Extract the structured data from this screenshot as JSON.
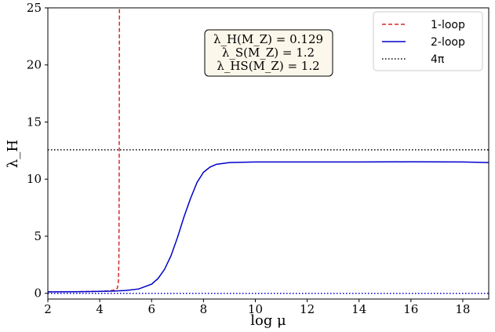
{
  "chart_data": {
    "type": "line",
    "title": "",
    "xlabel": "log μ",
    "ylabel": "λ_H",
    "xlim": [
      2,
      19
    ],
    "ylim": [
      -0.5,
      25
    ],
    "xticks": [
      2,
      4,
      6,
      8,
      10,
      12,
      14,
      16,
      18
    ],
    "yticks": [
      0,
      5,
      10,
      15,
      20,
      25
    ],
    "grid": false,
    "legend_position": "top-right",
    "series": [
      {
        "name": "1-loop",
        "style": "dashed",
        "color": "#d62728",
        "x": [
          2,
          3,
          4,
          4.4,
          4.6,
          4.68,
          4.72,
          4.74,
          4.75,
          4.76
        ],
        "y": [
          0.13,
          0.14,
          0.17,
          0.22,
          0.3,
          0.45,
          1.0,
          3.0,
          10.0,
          25.0
        ]
      },
      {
        "name": "2-loop",
        "style": "solid",
        "color": "#0000cc",
        "x": [
          2,
          3,
          4,
          4.5,
          5,
          5.5,
          6,
          6.25,
          6.5,
          6.75,
          7,
          7.25,
          7.5,
          7.75,
          8,
          8.25,
          8.5,
          9,
          10,
          12,
          14,
          16,
          18,
          19
        ],
        "y": [
          0.13,
          0.14,
          0.17,
          0.2,
          0.25,
          0.38,
          0.8,
          1.3,
          2.1,
          3.3,
          4.9,
          6.7,
          8.3,
          9.7,
          10.6,
          11.05,
          11.3,
          11.45,
          11.5,
          11.5,
          11.5,
          11.52,
          11.5,
          11.45
        ]
      },
      {
        "name": "4π",
        "style": "dotted",
        "color": "#000000",
        "x": [
          2,
          19
        ],
        "y": [
          12.566,
          12.566
        ]
      },
      {
        "name": "",
        "style": "dotted",
        "color": "#0000cc",
        "x": [
          2,
          19
        ],
        "y": [
          0,
          0
        ]
      }
    ],
    "annotation": {
      "lines": [
        "λ_H(M_Z) = 0.129",
        "λ_S(M_Z) = 1.2",
        "λ_HS(M_Z) = 1.2"
      ]
    }
  }
}
